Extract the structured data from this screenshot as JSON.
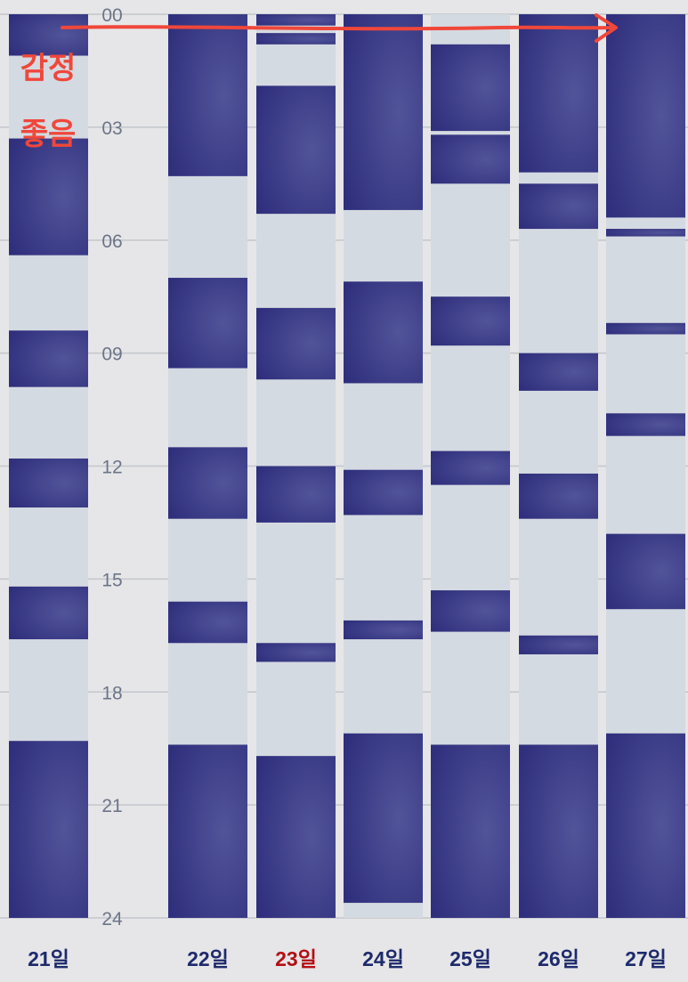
{
  "chart_data": {
    "type": "bar",
    "subtype": "sleep-timeline",
    "y_axis": {
      "range": [
        0,
        24
      ],
      "ticks": [
        "00",
        "03",
        "06",
        "09",
        "12",
        "15",
        "18",
        "21",
        "24"
      ],
      "tick_values": [
        0,
        3,
        6,
        9,
        12,
        15,
        18,
        21,
        24
      ],
      "grid": true
    },
    "categories": [
      "21일",
      "22일",
      "23일",
      "24일",
      "25일",
      "26일",
      "27일"
    ],
    "highlight_category": "23일",
    "colors": {
      "sleep": "#3f3f8a",
      "awake": "#d4dae1",
      "label": "#1d2a6b",
      "highlight_label": "#b40f14",
      "grid": "#c2c6cc",
      "tick": "#6c7588",
      "annotation": "#f0473a",
      "background": "#e6e6e8"
    },
    "days": [
      {
        "label": "21일",
        "sleep": [
          [
            0,
            1.1
          ],
          [
            3.3,
            6.4
          ],
          [
            8.4,
            9.9
          ],
          [
            11.8,
            13.1
          ],
          [
            15.2,
            16.6
          ],
          [
            19.3,
            24
          ]
        ]
      },
      {
        "label": "22일",
        "sleep": [
          [
            0,
            4.3
          ],
          [
            7.0,
            9.4
          ],
          [
            11.5,
            13.4
          ],
          [
            15.6,
            16.7
          ],
          [
            19.4,
            24
          ]
        ]
      },
      {
        "label": "23일",
        "sleep": [
          [
            0,
            0.3
          ],
          [
            0.5,
            0.8
          ],
          [
            1.9,
            5.3
          ],
          [
            7.8,
            9.7
          ],
          [
            12.0,
            13.5
          ],
          [
            16.7,
            17.2
          ],
          [
            19.7,
            24
          ]
        ]
      },
      {
        "label": "24일",
        "sleep": [
          [
            0,
            5.2
          ],
          [
            7.1,
            9.8
          ],
          [
            12.1,
            13.3
          ],
          [
            16.1,
            16.6
          ],
          [
            19.1,
            23.6
          ]
        ]
      },
      {
        "label": "25일",
        "sleep": [
          [
            0.8,
            3.1
          ],
          [
            3.2,
            4.5
          ],
          [
            7.5,
            8.8
          ],
          [
            11.6,
            12.5
          ],
          [
            15.3,
            16.4
          ],
          [
            19.4,
            24
          ]
        ]
      },
      {
        "label": "26일",
        "sleep": [
          [
            0,
            4.2
          ],
          [
            4.5,
            5.7
          ],
          [
            9.0,
            10.0
          ],
          [
            12.2,
            13.4
          ],
          [
            16.5,
            17.0
          ],
          [
            19.4,
            24
          ]
        ]
      },
      {
        "label": "27일",
        "sleep": [
          [
            0,
            5.4
          ],
          [
            5.7,
            5.9
          ],
          [
            8.2,
            8.5
          ],
          [
            10.6,
            11.2
          ],
          [
            13.8,
            15.8
          ],
          [
            19.1,
            24
          ]
        ]
      }
    ]
  },
  "annotation": {
    "text_lines": [
      "감정",
      "좋음"
    ],
    "arrow": "right"
  }
}
